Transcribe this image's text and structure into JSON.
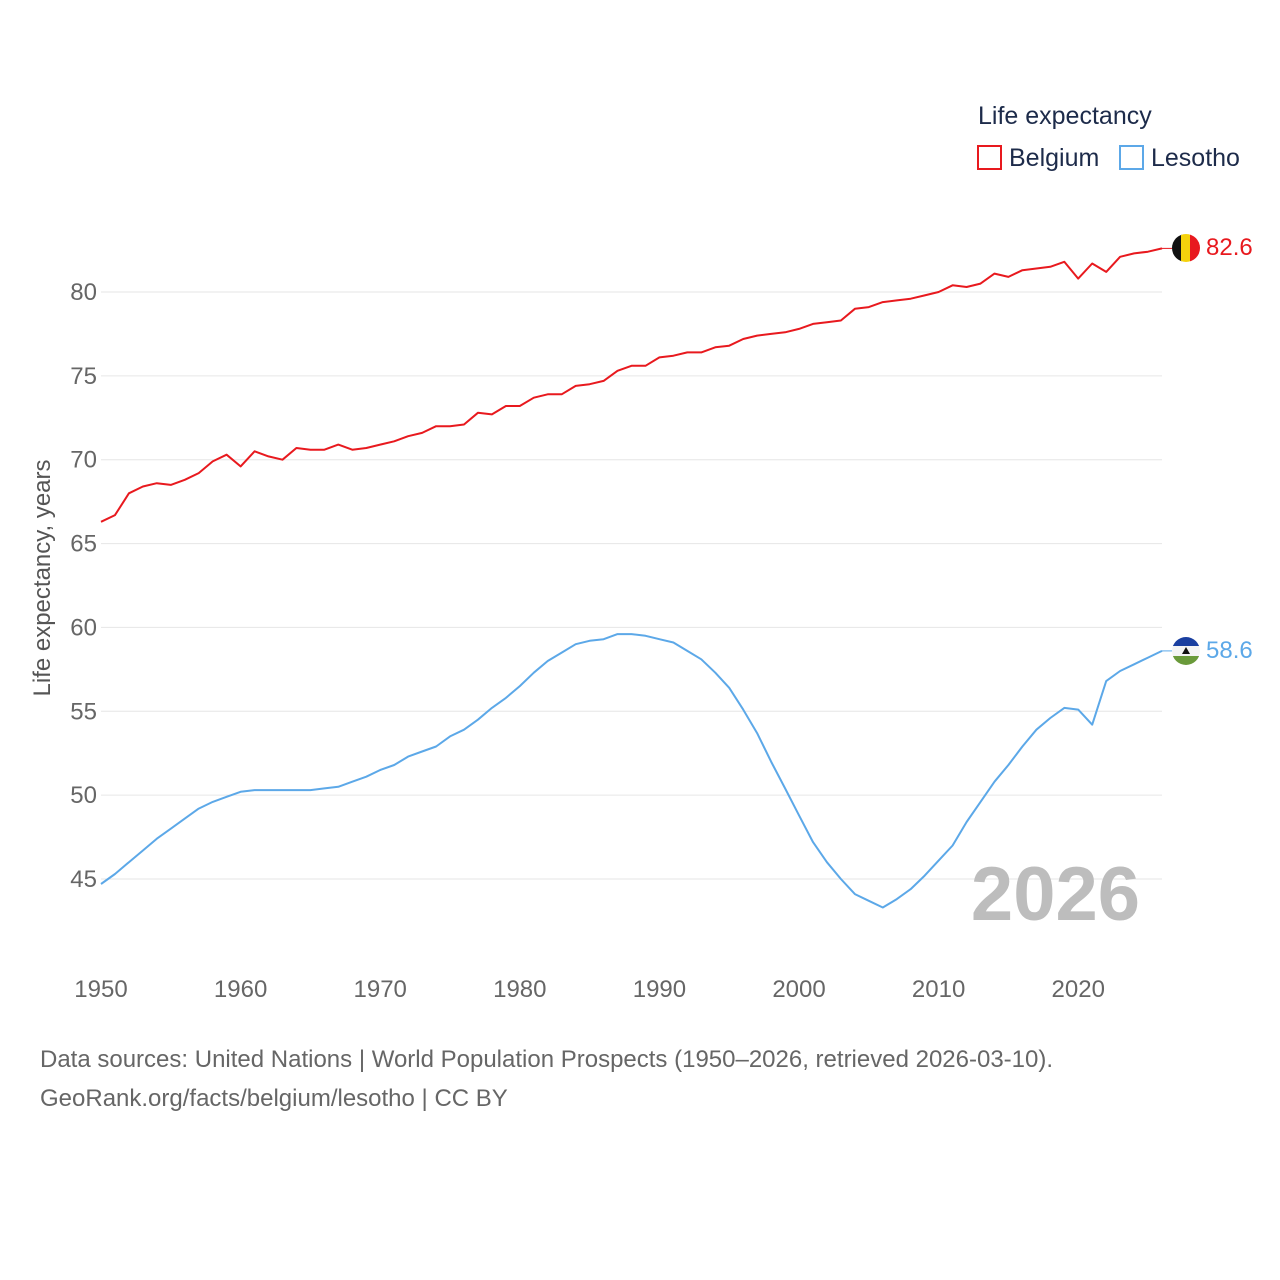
{
  "chart_data": {
    "type": "line",
    "ylabel": "Life expectancy, years",
    "xlabel": "",
    "xlim": [
      1950,
      2026
    ],
    "ylim": [
      42,
      85
    ],
    "x_ticks": [
      1950,
      1960,
      1970,
      1980,
      1990,
      2000,
      2010,
      2020
    ],
    "y_ticks": [
      45,
      50,
      55,
      60,
      65,
      70,
      75,
      80
    ],
    "grid": "horizontal",
    "legend": {
      "title": "Life expectancy",
      "placement": "top-right"
    },
    "current_year": "2026",
    "x": [
      1950,
      1951,
      1952,
      1953,
      1954,
      1955,
      1956,
      1957,
      1958,
      1959,
      1960,
      1961,
      1962,
      1963,
      1964,
      1965,
      1966,
      1967,
      1968,
      1969,
      1970,
      1971,
      1972,
      1973,
      1974,
      1975,
      1976,
      1977,
      1978,
      1979,
      1980,
      1981,
      1982,
      1983,
      1984,
      1985,
      1986,
      1987,
      1988,
      1989,
      1990,
      1991,
      1992,
      1993,
      1994,
      1995,
      1996,
      1997,
      1998,
      1999,
      2000,
      2001,
      2002,
      2003,
      2004,
      2005,
      2006,
      2007,
      2008,
      2009,
      2010,
      2011,
      2012,
      2013,
      2014,
      2015,
      2016,
      2017,
      2018,
      2019,
      2020,
      2021,
      2022,
      2023,
      2024,
      2025,
      2026
    ],
    "series": [
      {
        "name": "Belgium",
        "color": "#e8191e",
        "end_label": "82.6",
        "flag": "belgium-flag",
        "values": [
          66.3,
          66.7,
          68.0,
          68.4,
          68.6,
          68.5,
          68.8,
          69.2,
          69.9,
          70.3,
          69.6,
          70.5,
          70.2,
          70.0,
          70.7,
          70.6,
          70.6,
          70.9,
          70.6,
          70.7,
          70.9,
          71.1,
          71.4,
          71.6,
          72.0,
          72.0,
          72.1,
          72.8,
          72.7,
          73.2,
          73.2,
          73.7,
          73.9,
          73.9,
          74.4,
          74.5,
          74.7,
          75.3,
          75.6,
          75.6,
          76.1,
          76.2,
          76.4,
          76.4,
          76.7,
          76.8,
          77.2,
          77.4,
          77.5,
          77.6,
          77.8,
          78.1,
          78.2,
          78.3,
          79.0,
          79.1,
          79.4,
          79.5,
          79.6,
          79.8,
          80.0,
          80.4,
          80.3,
          80.5,
          81.1,
          80.9,
          81.3,
          81.4,
          81.5,
          81.8,
          80.8,
          81.7,
          81.2,
          82.1,
          82.3,
          82.4,
          82.6
        ]
      },
      {
        "name": "Lesotho",
        "color": "#5ca8e8",
        "end_label": "58.6",
        "flag": "lesotho-flag",
        "values": [
          44.7,
          45.3,
          46.0,
          46.7,
          47.4,
          48.0,
          48.6,
          49.2,
          49.6,
          49.9,
          50.2,
          50.3,
          50.3,
          50.3,
          50.3,
          50.3,
          50.4,
          50.5,
          50.8,
          51.1,
          51.5,
          51.8,
          52.3,
          52.6,
          52.9,
          53.5,
          53.9,
          54.5,
          55.2,
          55.8,
          56.5,
          57.3,
          58.0,
          58.5,
          59.0,
          59.2,
          59.3,
          59.6,
          59.6,
          59.5,
          59.3,
          59.1,
          58.6,
          58.1,
          57.3,
          56.4,
          55.1,
          53.7,
          52.0,
          50.4,
          48.8,
          47.2,
          46.0,
          45.0,
          44.1,
          43.7,
          43.3,
          43.8,
          44.4,
          45.2,
          46.1,
          47.0,
          48.4,
          49.6,
          50.8,
          51.8,
          52.9,
          53.9,
          54.6,
          55.2,
          55.1,
          54.2,
          56.8,
          57.4,
          57.8,
          58.2,
          58.6
        ]
      }
    ]
  },
  "footer": {
    "sources": "Data sources: United Nations | World Population Prospects (1950–2026, retrieved 2026-03-10).",
    "attribution": "GeoRank.org/facts/belgium/lesotho | CC BY"
  }
}
